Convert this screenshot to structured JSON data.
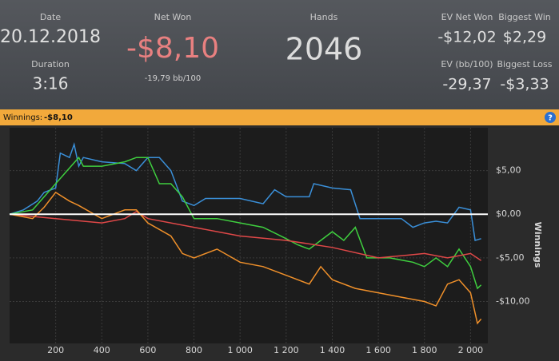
{
  "header": {
    "stats": [
      {
        "label": "Date",
        "value": "20.12.2018"
      },
      {
        "label": "Duration",
        "value": "3:16"
      },
      {
        "label": "Net Won",
        "value": "-$8,10",
        "sub": "-19,79 bb/100"
      },
      {
        "label": "Hands",
        "value": "2046"
      },
      {
        "label": "EV Net Won",
        "value": "-$12,02"
      },
      {
        "label": "Biggest Win",
        "value": "$2,29"
      },
      {
        "label": "EV (bb/100)",
        "value": "-29,37"
      },
      {
        "label": "Biggest Loss",
        "value": "-$3,33"
      }
    ]
  },
  "bar": {
    "label": "Winnings:",
    "value": "-$8,10",
    "help": "?"
  },
  "chart_data": {
    "type": "line",
    "ylabel": "Winnings",
    "xlim": [
      0,
      2075
    ],
    "ylim": [
      -14.8,
      9.9
    ],
    "xticks": [
      200,
      400,
      600,
      800,
      {
        "value": 1000,
        "label": "1 000"
      },
      {
        "value": 1200,
        "label": "1 200"
      },
      {
        "value": 1400,
        "label": "1 400"
      },
      {
        "value": 1600,
        "label": "1 600"
      },
      {
        "value": 1800,
        "label": "1 800"
      },
      {
        "value": 2000,
        "label": "2 000"
      }
    ],
    "yticks": [
      {
        "value": 5,
        "label": "$5,00"
      },
      {
        "value": 0,
        "label": "$0,00"
      },
      {
        "value": -5,
        "label": "-$5,00"
      },
      {
        "value": -10,
        "label": "-$10,00"
      }
    ],
    "grid": true,
    "series": [
      {
        "color": "#3a8fd8",
        "x": [
          0,
          60,
          120,
          150,
          200,
          220,
          260,
          280,
          300,
          320,
          400,
          500,
          550,
          600,
          650,
          700,
          750,
          800,
          850,
          1000,
          1100,
          1150,
          1200,
          1300,
          1320,
          1400,
          1480,
          1520,
          1600,
          1700,
          1750,
          1800,
          1850,
          1900,
          1950,
          2000,
          2020,
          2046
        ],
        "values": [
          0,
          0.5,
          1.5,
          2.5,
          3.0,
          7.0,
          6.5,
          8.0,
          5.5,
          6.5,
          6.0,
          5.8,
          5.0,
          6.5,
          6.5,
          5.0,
          1.5,
          1.0,
          1.8,
          1.8,
          1.2,
          2.8,
          2.0,
          2.0,
          3.5,
          3.0,
          2.8,
          -0.5,
          -0.5,
          -0.5,
          -1.5,
          -1.0,
          -0.8,
          -1.0,
          0.8,
          0.5,
          -3.0,
          -2.8
        ]
      },
      {
        "color": "#3fcf3f",
        "x": [
          0,
          100,
          150,
          200,
          250,
          300,
          320,
          400,
          500,
          550,
          600,
          650,
          700,
          750,
          800,
          900,
          1000,
          1100,
          1200,
          1250,
          1300,
          1350,
          1400,
          1450,
          1500,
          1550,
          1650,
          1750,
          1800,
          1850,
          1900,
          1950,
          2000,
          2030,
          2046
        ],
        "values": [
          0,
          0.5,
          2.0,
          3.5,
          5.0,
          6.5,
          5.5,
          5.5,
          6.0,
          6.5,
          6.5,
          3.5,
          3.5,
          2.0,
          -0.5,
          -0.5,
          -1.0,
          -1.5,
          -2.8,
          -3.5,
          -4.0,
          -3.0,
          -2.0,
          -3.0,
          -1.5,
          -5.0,
          -5.0,
          -5.5,
          -6.0,
          -5.0,
          -6.0,
          -4.0,
          -6.0,
          -8.5,
          -8.1
        ]
      },
      {
        "color": "#e04848",
        "x": [
          0,
          200,
          400,
          500,
          550,
          600,
          800,
          1000,
          1200,
          1400,
          1600,
          1800,
          1900,
          2000,
          2046
        ],
        "values": [
          0,
          -0.5,
          -1.0,
          -0.5,
          0.3,
          -0.5,
          -1.5,
          -2.5,
          -3.0,
          -3.8,
          -5.0,
          -4.5,
          -5.0,
          -4.5,
          -5.3
        ]
      },
      {
        "color": "#f0902a",
        "x": [
          0,
          100,
          150,
          200,
          260,
          300,
          400,
          500,
          550,
          600,
          700,
          750,
          800,
          900,
          1000,
          1100,
          1200,
          1300,
          1350,
          1400,
          1500,
          1600,
          1700,
          1800,
          1850,
          1900,
          1950,
          2000,
          2030,
          2046
        ],
        "values": [
          0,
          -0.5,
          0.8,
          2.5,
          1.5,
          1.0,
          -0.5,
          0.5,
          0.5,
          -1.0,
          -2.5,
          -4.5,
          -5.0,
          -4.0,
          -5.5,
          -6.0,
          -7.0,
          -8.0,
          -6.0,
          -7.5,
          -8.5,
          -9.0,
          -9.5,
          -10.0,
          -10.5,
          -8.0,
          -7.5,
          -9.0,
          -12.5,
          -12.0
        ]
      }
    ]
  }
}
